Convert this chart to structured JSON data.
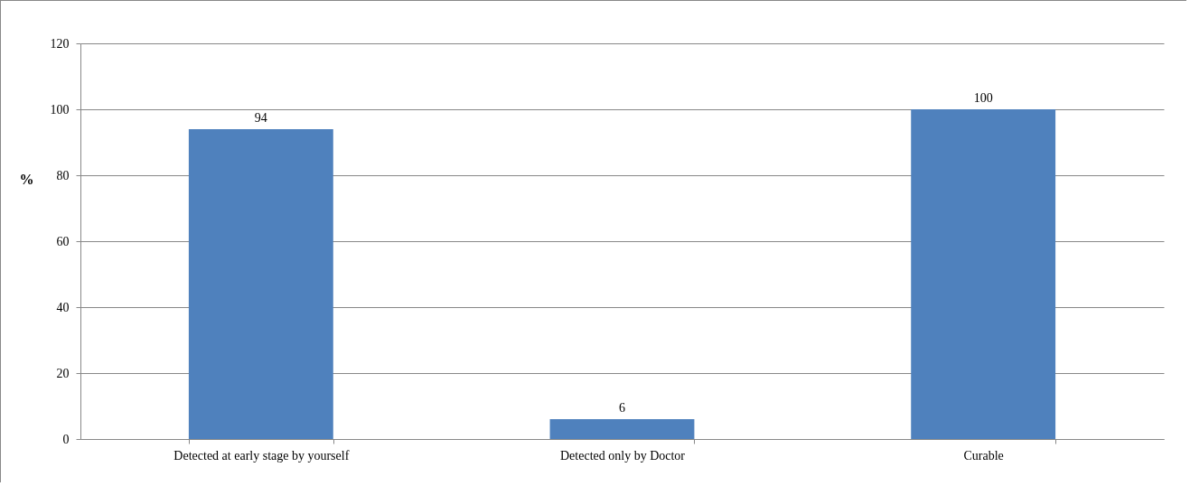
{
  "chart_data": {
    "type": "bar",
    "ylabel": "%",
    "categories": [
      "Detected at early stage by yourself",
      "Detected only by Doctor",
      "Curable"
    ],
    "values": [
      94,
      6,
      100
    ],
    "color": "#4f81bd",
    "ylim": [
      0,
      120
    ],
    "yticks": [
      0,
      20,
      40,
      60,
      80,
      100,
      120
    ],
    "grid": "y",
    "data_labels": true
  }
}
